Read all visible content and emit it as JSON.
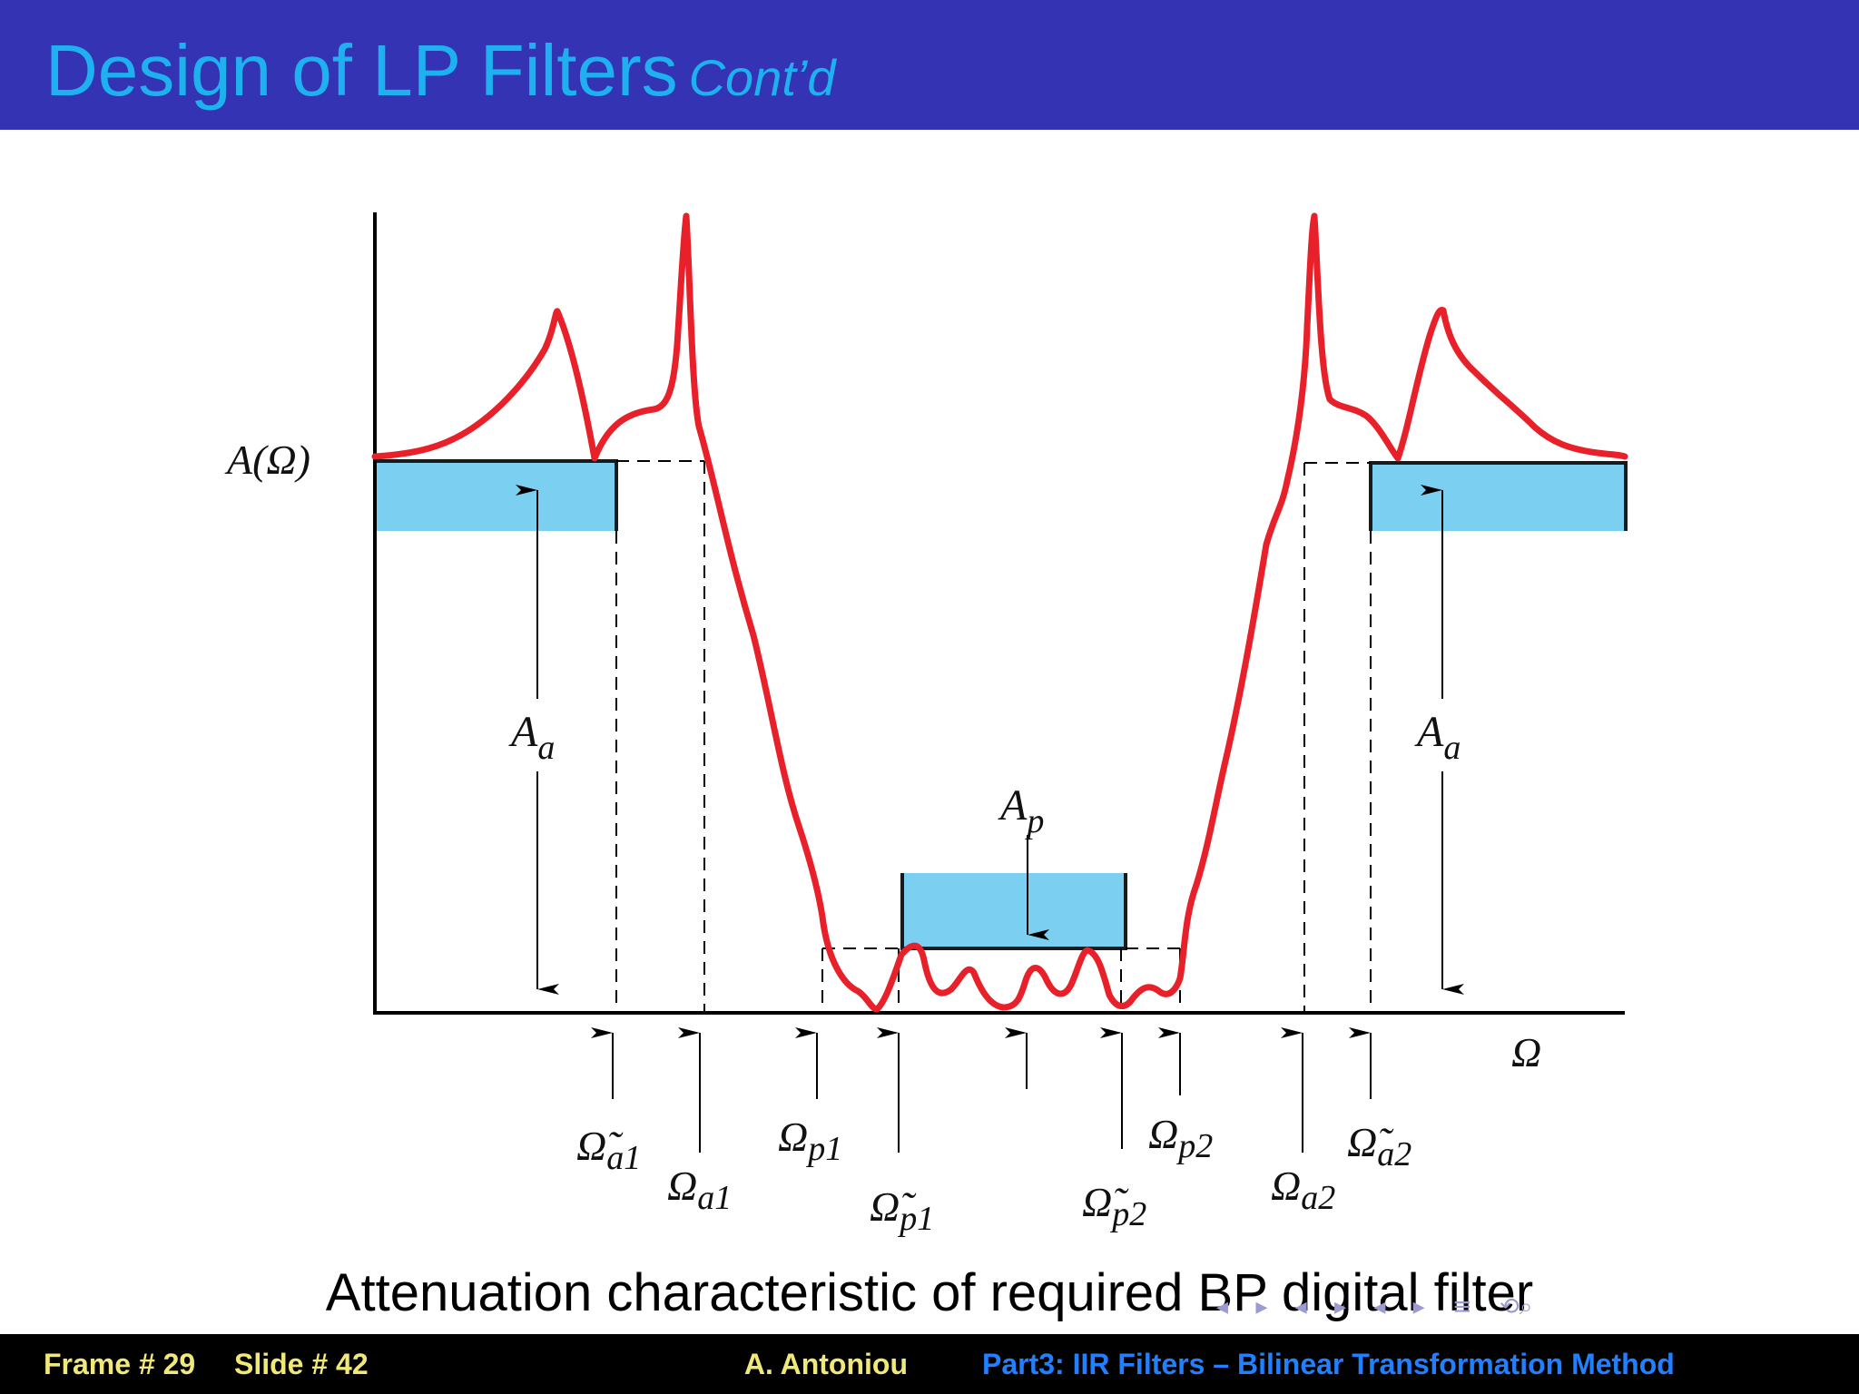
{
  "title": {
    "main": "Design of LP Filters",
    "sub": "Cont’d"
  },
  "diagram": {
    "y_axis_label": "A(Ω)",
    "x_axis_label": "Ω",
    "labels": {
      "Aa_left": "A",
      "Aa_left_sub": "a",
      "Aa_right": "A",
      "Aa_right_sub": "a",
      "Ap": "A",
      "Ap_sub": "p",
      "omega_tilde_a1": "Ω̃",
      "omega_tilde_a1_sub": "a1",
      "omega_a1": "Ω",
      "omega_a1_sub": "a1",
      "omega_p1": "Ω",
      "omega_p1_sub": "p1",
      "omega_tilde_p1": "Ω̃",
      "omega_tilde_p1_sub": "p1",
      "omega_tilde_p2": "Ω̃",
      "omega_tilde_p2_sub": "p2",
      "omega_p2": "Ω",
      "omega_p2_sub": "p2",
      "omega_a2": "Ω",
      "omega_a2_sub": "a2",
      "omega_tilde_a2": "Ω̃",
      "omega_tilde_a2_sub": "a2"
    },
    "colors": {
      "curve": "#e8202a",
      "band": "#7bd0f2",
      "axis": "#000000"
    }
  },
  "caption": "Attenuation characteristic of required BP digital filter",
  "nav_icons": [
    "frame-left-icon",
    "frame-right-icon",
    "subsection-left-icon",
    "subsection-right-icon",
    "section-left-icon",
    "section-right-icon",
    "align-icon",
    "search-icon"
  ],
  "footer": {
    "frame": "Frame # 29",
    "slide": "Slide # 42",
    "author": "A. Antoniou",
    "part": "Part3: IIR Filters – Bilinear Transformation Method"
  }
}
